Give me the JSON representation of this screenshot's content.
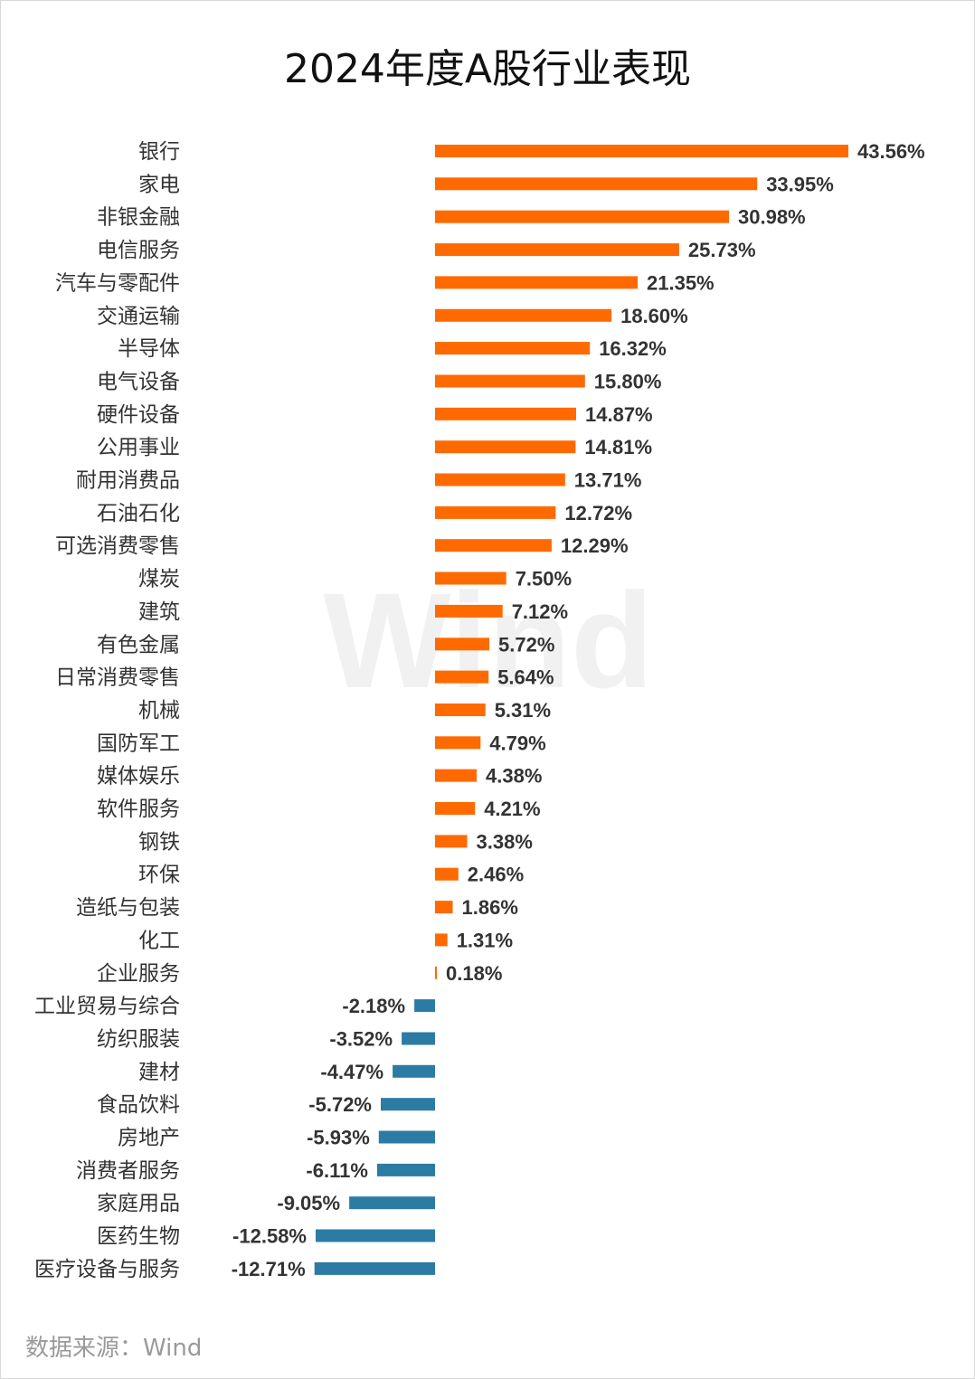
{
  "title": "2024年度A股行业表现",
  "source": "数据来源：Wind",
  "watermark": "Wind",
  "colors": {
    "positive": "#ff6a00",
    "negative": "#2c7ba4"
  },
  "chart_data": {
    "type": "bar",
    "orientation": "horizontal",
    "title": "2024年度A股行业表现",
    "value_format": "percent",
    "categories": [
      "银行",
      "家电",
      "非银金融",
      "电信服务",
      "汽车与零配件",
      "交通运输",
      "半导体",
      "电气设备",
      "硬件设备",
      "公用事业",
      "耐用消费品",
      "石油石化",
      "可选消费零售",
      "煤炭",
      "建筑",
      "有色金属",
      "日常消费零售",
      "机械",
      "国防军工",
      "媒体娱乐",
      "软件服务",
      "钢铁",
      "环保",
      "造纸与包装",
      "化工",
      "企业服务",
      "工业贸易与综合",
      "纺织服装",
      "建材",
      "食品饮料",
      "房地产",
      "消费者服务",
      "家庭用品",
      "医药生物",
      "医疗设备与服务"
    ],
    "values": [
      43.56,
      33.95,
      30.98,
      25.73,
      21.35,
      18.6,
      16.32,
      15.8,
      14.87,
      14.81,
      13.71,
      12.72,
      12.29,
      7.5,
      7.12,
      5.72,
      5.64,
      5.31,
      4.79,
      4.38,
      4.21,
      3.38,
      2.46,
      1.86,
      1.31,
      0.18,
      -2.18,
      -3.52,
      -4.47,
      -5.72,
      -5.93,
      -6.11,
      -9.05,
      -12.58,
      -12.71
    ],
    "labels": [
      "43.56%",
      "33.95%",
      "30.98%",
      "25.73%",
      "21.35%",
      "18.60%",
      "16.32%",
      "15.80%",
      "14.87%",
      "14.81%",
      "13.71%",
      "12.72%",
      "12.29%",
      "7.50%",
      "7.12%",
      "5.72%",
      "5.64%",
      "5.31%",
      "4.79%",
      "4.38%",
      "4.21%",
      "3.38%",
      "2.46%",
      "1.86%",
      "1.31%",
      "0.18%",
      "-2.18%",
      "-3.52%",
      "-4.47%",
      "-5.72%",
      "-5.93%",
      "-6.11%",
      "-9.05%",
      "-12.58%",
      "-12.71%"
    ],
    "grid": false,
    "legend": "none"
  }
}
